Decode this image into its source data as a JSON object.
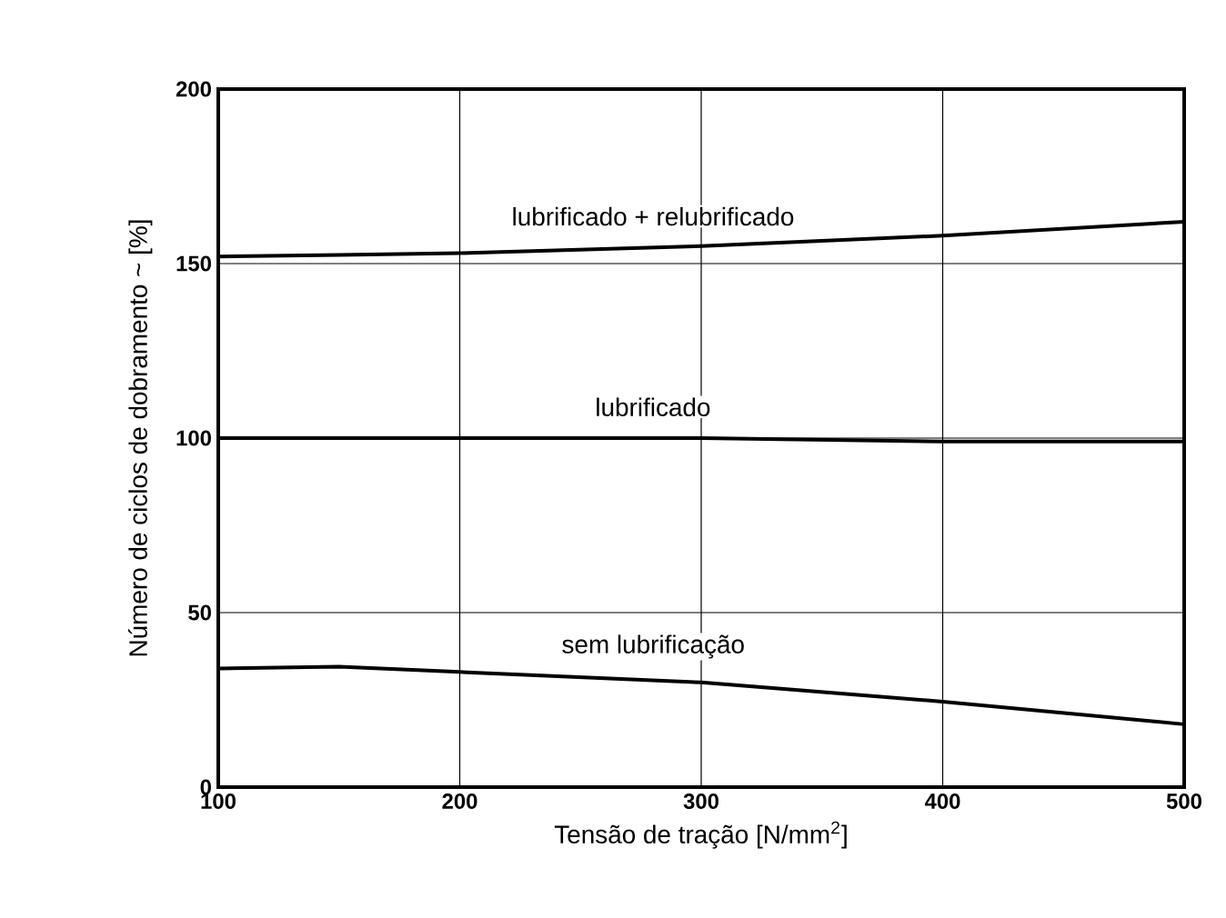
{
  "chart_data": {
    "type": "line",
    "xlabel": "Tensão de tração [N/mm$^{2}$]",
    "ylabel": "Número de ciclos de dobramento ~ [%]",
    "x": [
      100,
      150,
      200,
      300,
      400,
      500
    ],
    "series": [
      {
        "name": "lubrificado + relubrificado",
        "color": "#000000",
        "values": [
          152,
          152.5,
          153,
          155,
          158,
          162
        ]
      },
      {
        "name": "lubrificado",
        "color": "#000000",
        "values": [
          100,
          100,
          100,
          100,
          99,
          99
        ]
      },
      {
        "name": "sem lubrificação",
        "color": "#000000",
        "values": [
          34,
          34.5,
          33,
          30,
          24.5,
          18
        ]
      }
    ],
    "xlim": [
      100,
      500
    ],
    "ylim": [
      0,
      200
    ],
    "xticks": [
      100,
      200,
      300,
      400,
      500
    ],
    "yticks": [
      0,
      50,
      100,
      150,
      200
    ],
    "grid": true,
    "marker": "none",
    "line_style": "solid"
  }
}
